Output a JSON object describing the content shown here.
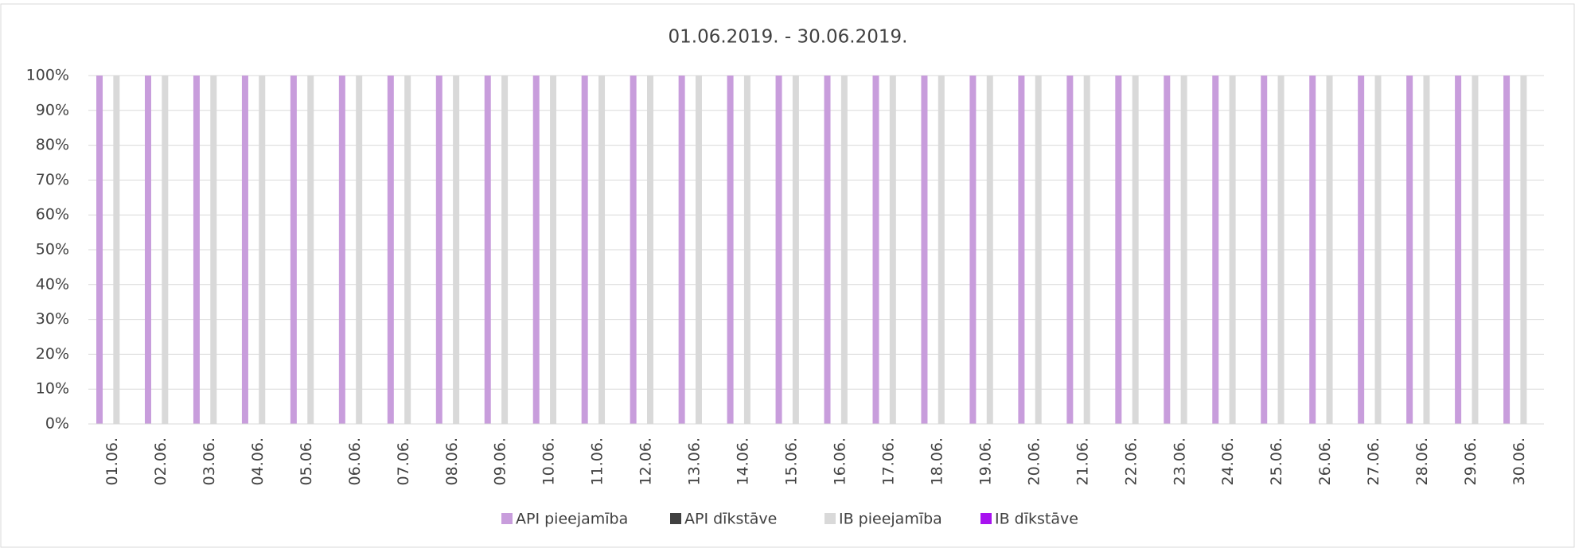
{
  "chart_data": {
    "type": "bar",
    "title": "01.06.2019. - 30.06.2019.",
    "categories": [
      "01.06.",
      "02.06.",
      "03.06.",
      "04.06.",
      "05.06.",
      "06.06.",
      "07.06.",
      "08.06.",
      "09.06.",
      "10.06.",
      "11.06.",
      "12.06.",
      "13.06.",
      "14.06.",
      "15.06.",
      "16.06.",
      "17.06.",
      "18.06.",
      "19.06.",
      "20.06.",
      "21.06.",
      "22.06.",
      "23.06.",
      "24.06.",
      "25.06.",
      "26.06.",
      "27.06.",
      "28.06.",
      "29.06.",
      "30.06."
    ],
    "series": [
      {
        "name": "API pieejamība",
        "color": "#c89ddc",
        "values": [
          100,
          100,
          100,
          100,
          100,
          100,
          100,
          100,
          100,
          100,
          100,
          100,
          100,
          100,
          100,
          100,
          100,
          100,
          100,
          100,
          100,
          100,
          100,
          100,
          100,
          100,
          100,
          100,
          100,
          100
        ]
      },
      {
        "name": "API dīkstāve",
        "color": "#404040",
        "values": [
          0,
          0,
          0,
          0,
          0,
          0,
          0,
          0,
          0,
          0,
          0,
          0,
          0,
          0,
          0,
          0,
          0,
          0,
          0,
          0,
          0,
          0,
          0,
          0,
          0,
          0,
          0,
          0,
          0,
          0
        ]
      },
      {
        "name": "IB pieejamība",
        "color": "#d9d9d9",
        "values": [
          100,
          100,
          100,
          100,
          100,
          100,
          100,
          100,
          100,
          100,
          100,
          100,
          100,
          100,
          100,
          100,
          100,
          100,
          100,
          100,
          100,
          100,
          100,
          100,
          100,
          100,
          100,
          100,
          100,
          100
        ]
      },
      {
        "name": "IB dīkstāve",
        "color": "#a812f0",
        "values": [
          0,
          0,
          0,
          0,
          0,
          0,
          0,
          0,
          0,
          0,
          0,
          0,
          0,
          0,
          0,
          0,
          0,
          0,
          0,
          0,
          0,
          0,
          0,
          0,
          0,
          0,
          0,
          0,
          0,
          0
        ]
      }
    ],
    "ylim": [
      0,
      100
    ],
    "yticks": [
      {
        "value": 0,
        "label": "0%"
      },
      {
        "value": 10,
        "label": "10%"
      },
      {
        "value": 20,
        "label": "20%"
      },
      {
        "value": 30,
        "label": "30%"
      },
      {
        "value": 40,
        "label": "40%"
      },
      {
        "value": 50,
        "label": "50%"
      },
      {
        "value": 60,
        "label": "60%"
      },
      {
        "value": 70,
        "label": "70%"
      },
      {
        "value": 80,
        "label": "80%"
      },
      {
        "value": 90,
        "label": "90%"
      },
      {
        "value": 100,
        "label": "100%"
      }
    ],
    "grid": true,
    "legend": "bottom"
  }
}
